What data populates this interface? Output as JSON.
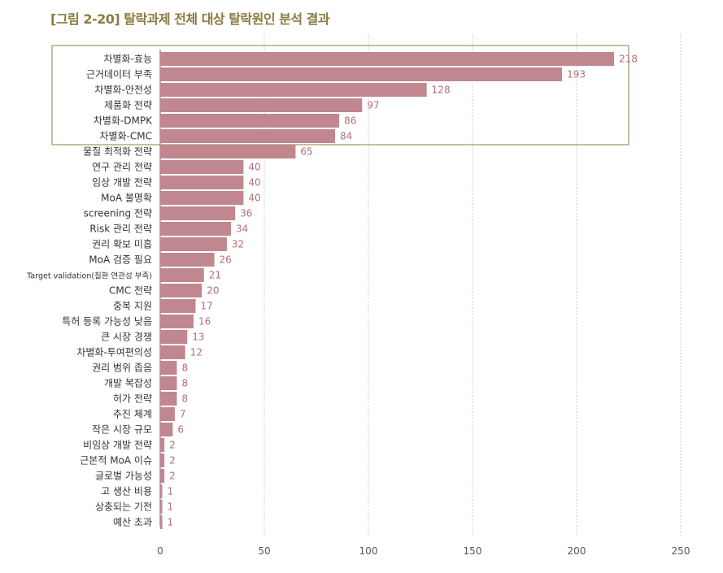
{
  "title": "[그림 2-20] 탈락과제 전체 대상 탈락원인 분석 결과",
  "colors": {
    "title": "#8a7a3e",
    "bar": "#c0878f",
    "value_label": "#b07079",
    "highlight_box": "#8a7e4a",
    "grid": "#cccccc",
    "axis": "#666666"
  },
  "chart_data": {
    "type": "bar",
    "orientation": "horizontal",
    "title": "[그림 2-20] 탈락과제 전체 대상 탈락원인 분석 결과",
    "xlabel": "",
    "ylabel": "",
    "xlim": [
      0,
      250
    ],
    "xticks": [
      0,
      50,
      100,
      150,
      200,
      250
    ],
    "grid": "vertical dashed",
    "legend": "none",
    "highlighted_categories": [
      "차별화-효능",
      "근거데이터 부족",
      "차별화-안전성",
      "제품화 전략",
      "차별화-DMPK",
      "차별화-CMC"
    ],
    "categories": [
      "차별화-효능",
      "근거데이터 부족",
      "차별화-안전성",
      "제품화 전략",
      "차별화-DMPK",
      "차별화-CMC",
      "물질 최적화 전략",
      "연구 관리 전략",
      "임상 개발 전략",
      "MoA 불명확",
      "screening 전략",
      "Risk 관리 전략",
      "권리 확보 미흡",
      "MoA 검증 필요",
      "Target validation(질환 연관성 부족)",
      "CMC 전략",
      "중복 지원",
      "특허 등록 가능성 낮음",
      "큰 시장 경쟁",
      "차별화-투여편의성",
      "권리 범위 좁음",
      "개발 복잡성",
      "허가 전략",
      "추진 체계",
      "작은 시장 규모",
      "비임상 개발 전략",
      "근본적 MoA 이슈",
      "글로벌 가능성",
      "고 생산 비용",
      "상충되는 기전",
      "예산 초과"
    ],
    "values": [
      218,
      193,
      128,
      97,
      86,
      84,
      65,
      40,
      40,
      40,
      36,
      34,
      32,
      26,
      21,
      20,
      17,
      16,
      13,
      12,
      8,
      8,
      8,
      7,
      6,
      2,
      2,
      2,
      1,
      1,
      1
    ]
  }
}
